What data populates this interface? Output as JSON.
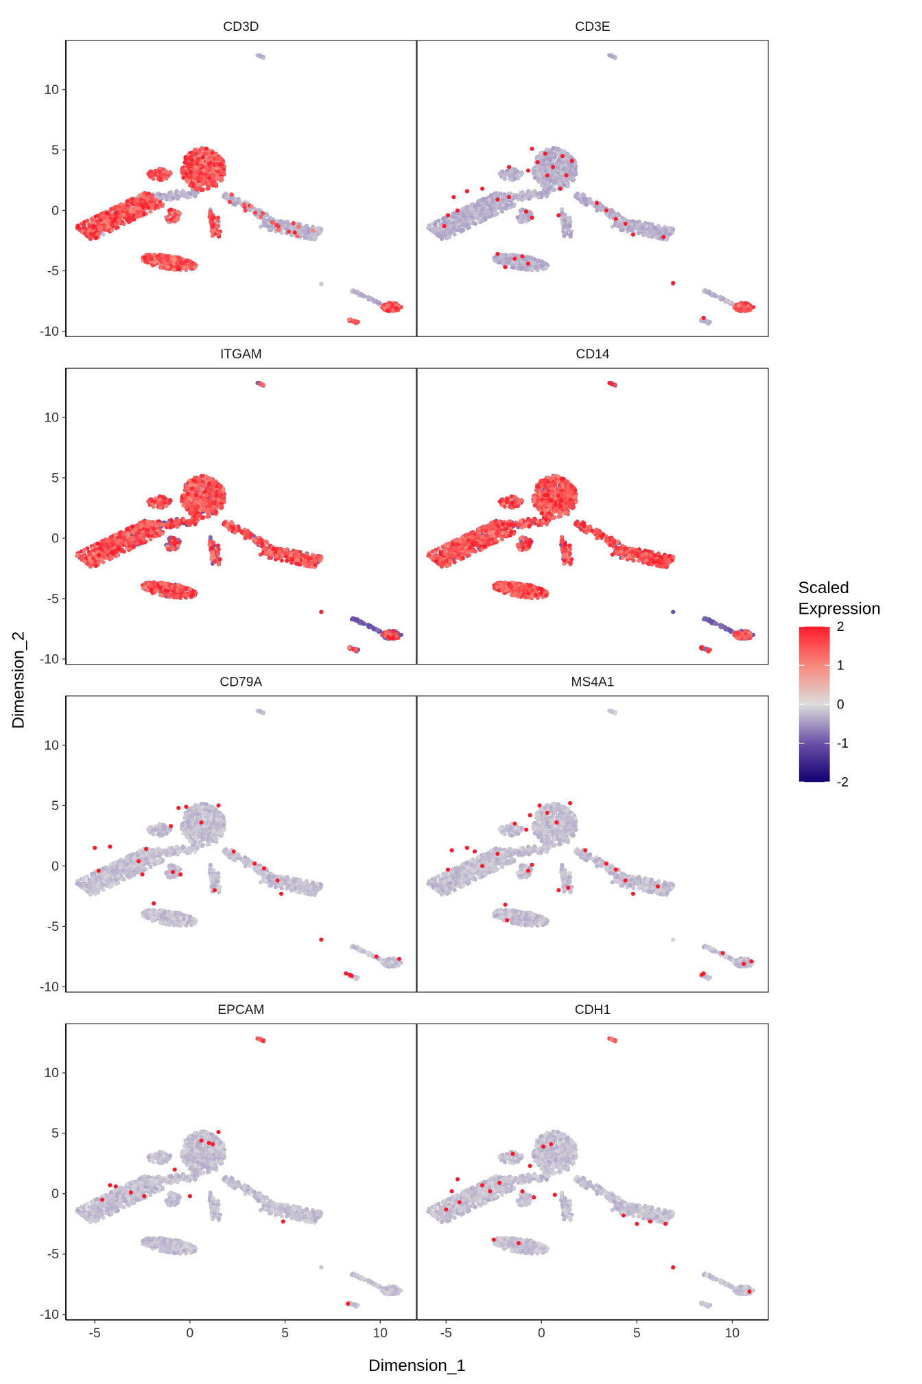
{
  "chart_data": {
    "type": "scatter",
    "title": "",
    "xlabel": "Dimension_1",
    "ylabel": "Dimension_2",
    "xlim": [
      -6.52,
      11.89
    ],
    "ylim": [
      -10.44,
      14.07
    ],
    "x_ticks": [
      -5,
      0,
      5,
      10
    ],
    "x_tick_labels": [
      "-5",
      "0",
      "5",
      "10"
    ],
    "y_ticks": [
      -10,
      -5,
      0,
      5,
      10
    ],
    "y_tick_labels": [
      "-10",
      "-5",
      "0",
      "5",
      "10"
    ],
    "grid": false,
    "legend": {
      "title_lines": [
        "Scaled",
        "Expression"
      ],
      "placement": "right",
      "ticks": [
        2,
        1,
        0,
        -1,
        -2
      ],
      "tick_labels": [
        "2",
        "1",
        "0",
        "-1",
        "-2"
      ]
    },
    "color_scale": [
      {
        "value": -2,
        "color": "#120070"
      },
      {
        "value": -1,
        "color": "#6a50a8"
      },
      {
        "value": 0,
        "color": "#dcdcdc"
      },
      {
        "value": 1,
        "color": "#f8887c"
      },
      {
        "value": 2,
        "color": "#ff1a2a"
      }
    ],
    "clusters": [
      {
        "id": "leftArm",
        "shape": "band",
        "from": [
          -5.6,
          -1.9
        ],
        "to": [
          -1.8,
          1.0
        ],
        "spread": 0.8,
        "n": 520
      },
      {
        "id": "bridge",
        "shape": "band",
        "from": [
          -2.0,
          1.0
        ],
        "to": [
          0.4,
          1.5
        ],
        "spread": 0.35,
        "n": 90
      },
      {
        "id": "upper",
        "shape": "ellipse",
        "center": [
          0.7,
          3.4
        ],
        "r": [
          1.15,
          1.75
        ],
        "angle": 0,
        "n": 420
      },
      {
        "id": "upperLeft",
        "shape": "ellipse",
        "center": [
          -1.6,
          3.0
        ],
        "r": [
          0.6,
          0.5
        ],
        "angle": 0,
        "n": 50
      },
      {
        "id": "smallA",
        "shape": "ellipse",
        "center": [
          -0.9,
          -0.5
        ],
        "r": [
          0.4,
          0.6
        ],
        "angle": 0,
        "n": 40
      },
      {
        "id": "smallB",
        "shape": "band",
        "from": [
          1.2,
          0.1
        ],
        "to": [
          1.4,
          -2.2
        ],
        "spread": 0.25,
        "n": 50
      },
      {
        "id": "rightArmNeck",
        "shape": "band",
        "from": [
          1.8,
          1.3
        ],
        "to": [
          4.0,
          -0.6
        ],
        "spread": 0.3,
        "n": 90
      },
      {
        "id": "rightArm",
        "shape": "band",
        "from": [
          3.8,
          -1.0
        ],
        "to": [
          6.8,
          -2.0
        ],
        "spread": 0.55,
        "n": 220
      },
      {
        "id": "island",
        "shape": "ellipse",
        "center": [
          -1.1,
          -4.3
        ],
        "r": [
          1.5,
          0.55
        ],
        "angle": -15,
        "n": 260
      },
      {
        "id": "top",
        "shape": "band",
        "from": [
          3.6,
          12.9
        ],
        "to": [
          3.9,
          12.6
        ],
        "spread": 0.08,
        "n": 10
      },
      {
        "id": "outlier",
        "shape": "band",
        "from": [
          6.9,
          -6.1
        ],
        "to": [
          6.9,
          -6.1
        ],
        "spread": 0.02,
        "n": 2
      },
      {
        "id": "streak",
        "shape": "band",
        "from": [
          8.5,
          -6.6
        ],
        "to": [
          10.0,
          -7.7
        ],
        "spread": 0.1,
        "n": 40
      },
      {
        "id": "blob",
        "shape": "ellipse",
        "center": [
          10.6,
          -8.0
        ],
        "r": [
          0.5,
          0.35
        ],
        "angle": 0,
        "n": 120
      },
      {
        "id": "small9",
        "shape": "band",
        "from": [
          8.3,
          -9.0
        ],
        "to": [
          8.8,
          -9.3
        ],
        "spread": 0.1,
        "n": 15
      }
    ],
    "panels": [
      {
        "gene": "CD3D",
        "base": -0.3,
        "expressed_fraction": {
          "leftArm": 0.85,
          "upper": 0.85,
          "upperLeft": 0.8,
          "smallA": 0.6,
          "smallB": 0.7,
          "island": 0.85,
          "blob": 1.0,
          "small9": 0.6,
          "rightArm": 0.06,
          "rightArmNeck": 0.1
        },
        "points": []
      },
      {
        "gene": "CD3E",
        "base": -0.3,
        "expressed_fraction": {
          "blob": 0.95
        },
        "points": [
          [
            -0.5,
            5.1
          ],
          [
            0.2,
            4.7
          ],
          [
            1.1,
            4.5
          ],
          [
            1.6,
            4.1
          ],
          [
            -0.2,
            4.0
          ],
          [
            0.6,
            3.6
          ],
          [
            1.3,
            2.9
          ],
          [
            0.3,
            2.9
          ],
          [
            1.0,
            1.8
          ],
          [
            -1.7,
            3.6
          ],
          [
            -0.7,
            3.3
          ],
          [
            -3.1,
            1.8
          ],
          [
            -3.9,
            1.6
          ],
          [
            -4.6,
            1.1
          ],
          [
            -4.9,
            -0.4
          ],
          [
            -5.1,
            -1.3
          ],
          [
            -4.4,
            0.0
          ],
          [
            -2.3,
            0.9
          ],
          [
            -1.7,
            1.1
          ],
          [
            -0.8,
            -0.1
          ],
          [
            -0.5,
            -0.6
          ],
          [
            0.9,
            -0.4
          ],
          [
            2.9,
            0.6
          ],
          [
            3.4,
            0.0
          ],
          [
            3.9,
            -0.7
          ],
          [
            4.4,
            -1.1
          ],
          [
            4.8,
            -2.0
          ],
          [
            6.4,
            -2.2
          ],
          [
            -2.3,
            -3.6
          ],
          [
            -1.4,
            -4.0
          ],
          [
            -0.7,
            -4.4
          ],
          [
            -1.0,
            -3.8
          ],
          [
            -1.9,
            -4.7
          ],
          [
            6.9,
            -6.0
          ],
          [
            8.5,
            -8.9
          ]
        ]
      },
      {
        "gene": "ITGAM",
        "base": -0.9,
        "expressed_fraction": {
          "leftArm": 0.9,
          "upper": 0.9,
          "upperLeft": 0.9,
          "bridge": 0.8,
          "smallA": 0.5,
          "smallB": 0.8,
          "rightArmNeck": 0.9,
          "rightArm": 0.85,
          "island": 0.9,
          "top": 0.5,
          "outlier": 1.0,
          "blob": 0.2,
          "small9": 0.3
        },
        "points": []
      },
      {
        "gene": "CD14",
        "base": -0.9,
        "expressed_fraction": {
          "leftArm": 0.9,
          "upper": 0.9,
          "upperLeft": 0.9,
          "bridge": 0.8,
          "smallA": 0.5,
          "smallB": 0.8,
          "rightArmNeck": 0.9,
          "rightArm": 0.85,
          "island": 1.0,
          "top": 0.4,
          "outlier": 0.5,
          "blob": 0.3,
          "small9": 0.3
        },
        "points": []
      },
      {
        "gene": "CD79A",
        "base": -0.2,
        "expressed_fraction": {},
        "points": [
          [
            -0.6,
            4.8
          ],
          [
            -0.2,
            4.9
          ],
          [
            0.6,
            3.6
          ],
          [
            1.5,
            5.0
          ],
          [
            -1.0,
            3.3
          ],
          [
            -5.0,
            1.5
          ],
          [
            -4.2,
            1.6
          ],
          [
            -4.8,
            -0.4
          ],
          [
            -2.7,
            0.4
          ],
          [
            -2.3,
            1.4
          ],
          [
            -2.5,
            -0.7
          ],
          [
            -0.9,
            -0.5
          ],
          [
            -0.5,
            -0.7
          ],
          [
            1.3,
            -2.0
          ],
          [
            2.3,
            1.2
          ],
          [
            3.4,
            0.2
          ],
          [
            3.9,
            -0.2
          ],
          [
            4.6,
            -1.2
          ],
          [
            4.8,
            -2.3
          ],
          [
            -1.9,
            -3.1
          ],
          [
            6.9,
            -6.1
          ],
          [
            8.2,
            -8.9
          ],
          [
            8.5,
            -9.1
          ],
          [
            8.4,
            -9.0
          ],
          [
            9.8,
            -7.5
          ],
          [
            11.0,
            -7.7
          ]
        ]
      },
      {
        "gene": "MS4A1",
        "base": -0.2,
        "expressed_fraction": {},
        "points": [
          [
            -0.1,
            5.0
          ],
          [
            -0.6,
            4.2
          ],
          [
            0.3,
            4.4
          ],
          [
            0.8,
            3.6
          ],
          [
            1.5,
            5.2
          ],
          [
            -1.4,
            3.5
          ],
          [
            -0.8,
            3.0
          ],
          [
            -4.7,
            1.3
          ],
          [
            -3.9,
            1.5
          ],
          [
            -3.5,
            1.2
          ],
          [
            -2.3,
            1.0
          ],
          [
            -4.9,
            -0.3
          ],
          [
            -3.1,
            0.0
          ],
          [
            -0.7,
            -0.4
          ],
          [
            -0.5,
            0.1
          ],
          [
            0.9,
            -2.0
          ],
          [
            1.4,
            -1.8
          ],
          [
            2.3,
            1.3
          ],
          [
            3.4,
            0.2
          ],
          [
            3.9,
            -0.3
          ],
          [
            4.4,
            -1.2
          ],
          [
            4.8,
            -2.3
          ],
          [
            -1.9,
            -3.2
          ],
          [
            -1.8,
            -4.5
          ],
          [
            6.1,
            -1.7
          ],
          [
            8.5,
            -8.9
          ],
          [
            8.4,
            -9.0
          ],
          [
            9.5,
            -7.2
          ],
          [
            10.6,
            -8.1
          ],
          [
            11.0,
            -7.9
          ]
        ]
      },
      {
        "gene": "EPCAM",
        "base": -0.2,
        "expressed_fraction": {
          "top": 1.0
        },
        "points": [
          [
            0.6,
            4.4
          ],
          [
            1.0,
            4.2
          ],
          [
            1.5,
            5.1
          ],
          [
            1.2,
            4.1
          ],
          [
            -0.8,
            2.0
          ],
          [
            -4.2,
            0.7
          ],
          [
            -3.9,
            0.6
          ],
          [
            -3.1,
            0.1
          ],
          [
            -2.4,
            -0.2
          ],
          [
            -4.6,
            -0.5
          ],
          [
            0.0,
            -0.2
          ],
          [
            4.9,
            -2.3
          ],
          [
            8.3,
            -9.1
          ]
        ]
      },
      {
        "gene": "CDH1",
        "base": -0.2,
        "expressed_fraction": {
          "top": 1.0
        },
        "points": [
          [
            -1.5,
            3.3
          ],
          [
            -0.6,
            2.3
          ],
          [
            0.1,
            3.9
          ],
          [
            0.5,
            4.1
          ],
          [
            -4.4,
            1.2
          ],
          [
            -4.7,
            0.2
          ],
          [
            -4.3,
            -0.7
          ],
          [
            -5.0,
            -1.3
          ],
          [
            -3.1,
            0.7
          ],
          [
            -2.7,
            0.2
          ],
          [
            -2.2,
            0.9
          ],
          [
            -1.0,
            0.2
          ],
          [
            -0.4,
            -0.3
          ],
          [
            0.7,
            -0.1
          ],
          [
            4.3,
            -1.8
          ],
          [
            5.0,
            -2.5
          ],
          [
            5.7,
            -2.3
          ],
          [
            6.5,
            -2.5
          ],
          [
            -2.5,
            -3.8
          ],
          [
            -1.2,
            -4.1
          ],
          [
            6.9,
            -6.1
          ],
          [
            10.9,
            -8.1
          ]
        ]
      }
    ]
  }
}
